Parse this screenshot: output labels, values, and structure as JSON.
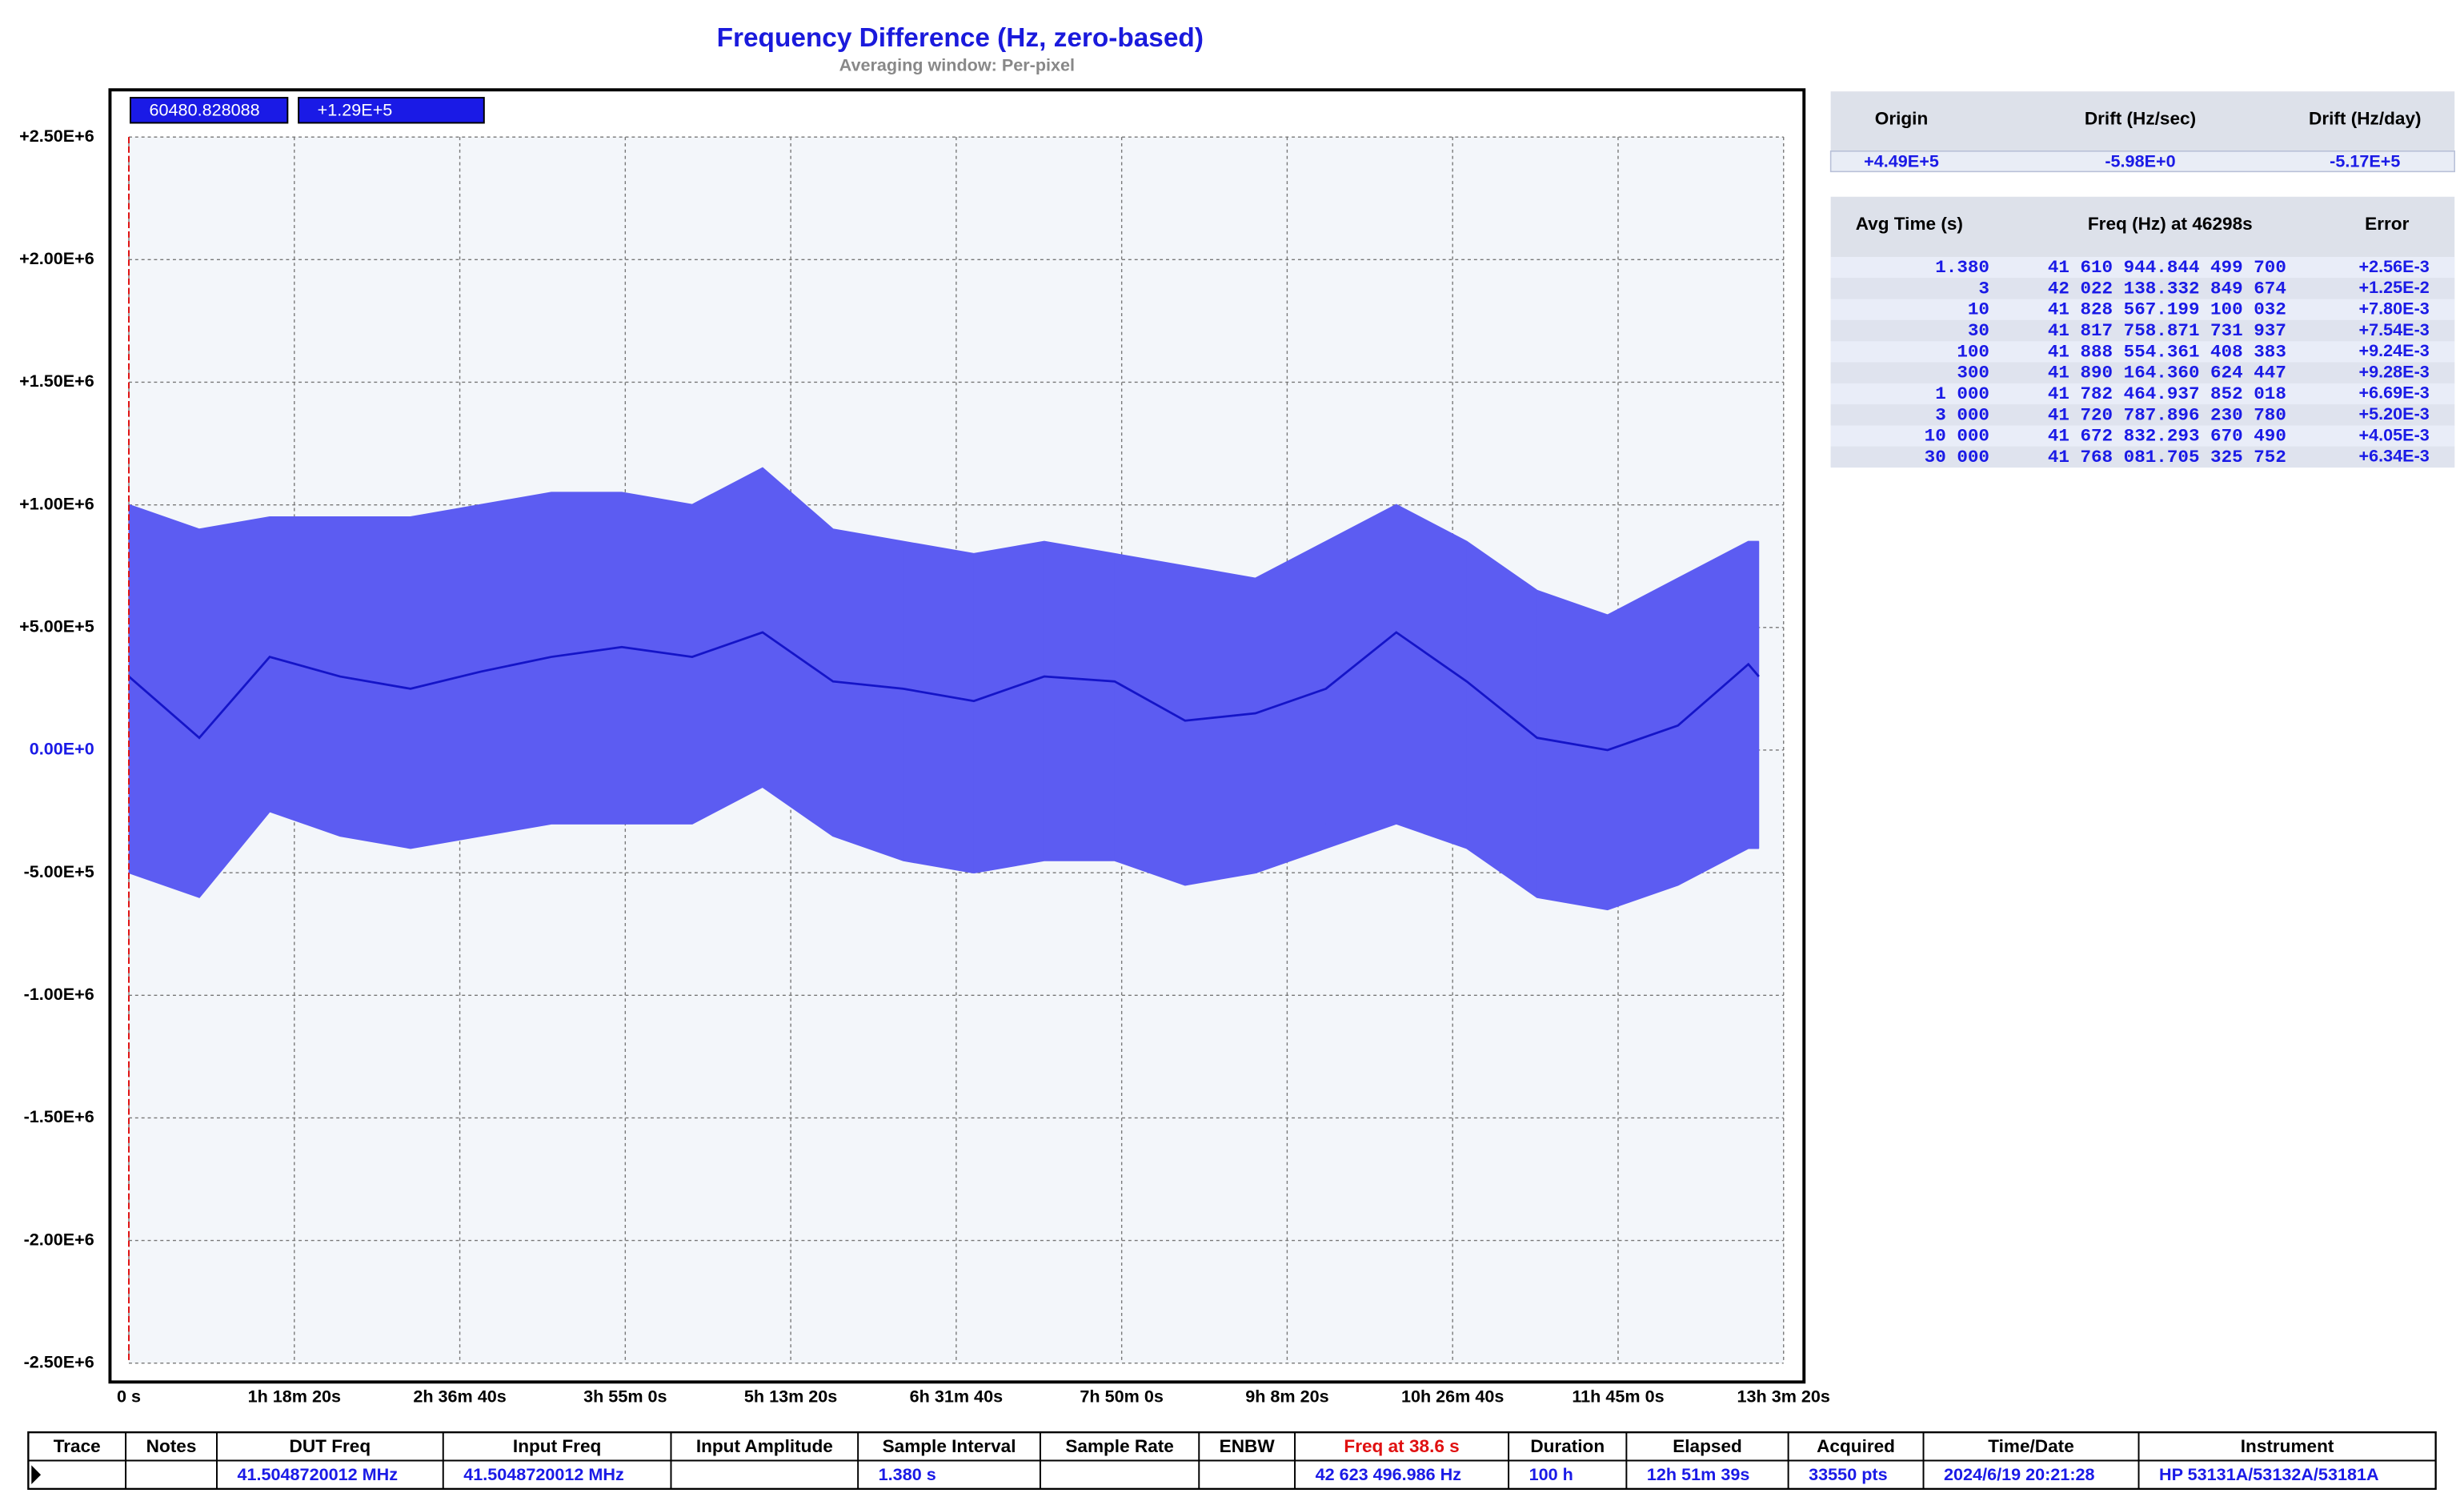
{
  "chart_data": {
    "type": "band-line",
    "title": "Frequency Difference (Hz, zero-based)",
    "subtitle": "Averaging window: Per-pixel",
    "cursor_readout": [
      "60480.828088",
      "+1.29E+5"
    ],
    "x": [
      0,
      2000,
      4000,
      6000,
      8000,
      10000,
      12000,
      14000,
      16000,
      18000,
      20000,
      22000,
      24000,
      26000,
      28000,
      30000,
      32000,
      34000,
      36000,
      38000,
      40000,
      42000,
      44000,
      46000,
      46298
    ],
    "xlim": [
      0,
      47000
    ],
    "xticks": [
      {
        "value": 0,
        "label": "0 s"
      },
      {
        "value": 4700,
        "label": "1h 18m 20s"
      },
      {
        "value": 9400,
        "label": "2h 36m 40s"
      },
      {
        "value": 14100,
        "label": "3h 55m 0s"
      },
      {
        "value": 18800,
        "label": "5h 13m 20s"
      },
      {
        "value": 23500,
        "label": "6h 31m 40s"
      },
      {
        "value": 28200,
        "label": "7h 50m 0s"
      },
      {
        "value": 32900,
        "label": "9h 8m 20s"
      },
      {
        "value": 37600,
        "label": "10h 26m 40s"
      },
      {
        "value": 42300,
        "label": "11h 45m 0s"
      },
      {
        "value": 47000,
        "label": "13h 3m 20s"
      }
    ],
    "ylim": [
      -2500000,
      2500000
    ],
    "yticks": [
      {
        "value": 2500000,
        "label": "+2.50E+6"
      },
      {
        "value": 2000000,
        "label": "+2.00E+6"
      },
      {
        "value": 1500000,
        "label": "+1.50E+6"
      },
      {
        "value": 1000000,
        "label": "+1.00E+6"
      },
      {
        "value": 500000,
        "label": "+5.00E+5"
      },
      {
        "value": 0,
        "label": "0.00E+0"
      },
      {
        "value": -500000,
        "label": "-5.00E+5"
      },
      {
        "value": -1000000,
        "label": "-1.00E+6"
      },
      {
        "value": -1500000,
        "label": "-1.50E+6"
      },
      {
        "value": -2000000,
        "label": "-2.00E+6"
      },
      {
        "value": -2500000,
        "label": "-2.50E+6"
      }
    ],
    "grid": true,
    "series": [
      {
        "color": "#1414c8",
        "values": [
          300000,
          50000,
          380000,
          300000,
          250000,
          320000,
          380000,
          420000,
          380000,
          480000,
          280000,
          250000,
          200000,
          300000,
          280000,
          120000,
          150000,
          250000,
          480000,
          280000,
          50000,
          0,
          100000,
          350000,
          300000
        ]
      },
      {
        "color": "#5c5cf2",
        "values": [
          1000000,
          900000,
          950000,
          950000,
          950000,
          1000000,
          1050000,
          1050000,
          1000000,
          1150000,
          900000,
          850000,
          800000,
          850000,
          800000,
          750000,
          700000,
          850000,
          1000000,
          850000,
          650000,
          550000,
          700000,
          850000,
          850000
        ]
      },
      {
        "color": "#5c5cf2",
        "values": [
          -500000,
          -600000,
          -250000,
          -350000,
          -400000,
          -350000,
          -300000,
          -300000,
          -300000,
          -150000,
          -350000,
          -450000,
          -500000,
          -450000,
          -450000,
          -550000,
          -500000,
          -400000,
          -300000,
          -400000,
          -600000,
          -650000,
          -550000,
          -400000,
          -400000
        ]
      }
    ]
  },
  "drift_table": {
    "headers": [
      "Origin",
      "Drift (Hz/sec)",
      "Drift (Hz/day)"
    ],
    "row": [
      "+4.49E+5",
      "-5.98E+0",
      "-5.17E+5"
    ]
  },
  "avg_table": {
    "headers": [
      "Avg Time (s)",
      "Freq (Hz) at 46298s",
      "Error"
    ],
    "rows": [
      [
        "1.380",
        "41 610 944.844 499 700",
        "+2.56E-3"
      ],
      [
        "3",
        "42 022 138.332 849 674",
        "+1.25E-2"
      ],
      [
        "10",
        "41 828 567.199 100 032",
        "+7.80E-3"
      ],
      [
        "30",
        "41 817 758.871 731 937",
        "+7.54E-3"
      ],
      [
        "100",
        "41 888 554.361 408 383",
        "+9.24E-3"
      ],
      [
        "300",
        "41 890 164.360 624 447",
        "+9.28E-3"
      ],
      [
        "1 000",
        "41 782 464.937 852 018",
        "+6.69E-3"
      ],
      [
        "3 000",
        "41 720 787.896 230 780",
        "+5.20E-3"
      ],
      [
        "10 000",
        "41 672 832.293 670 490",
        "+4.05E-3"
      ],
      [
        "30 000",
        "41 768 081.705 325 752",
        "+6.34E-3"
      ]
    ]
  },
  "status_table": {
    "headers": [
      "Trace",
      "Notes",
      "DUT Freq",
      "Input Freq",
      "Input Amplitude",
      "Sample Interval",
      "Sample Rate",
      "ENBW",
      "Freq at 38.6 s",
      "Duration",
      "Elapsed",
      "Acquired",
      "Time/Date",
      "Instrument"
    ],
    "row": [
      null,
      null,
      "41.5048720012 MHz",
      "41.5048720012 MHz",
      null,
      "1.380 s",
      null,
      null,
      "42 623 496.986 Hz",
      "100 h",
      "12h 51m 39s",
      "33550 pts",
      "2024/6/19 20:21:28",
      "HP 53131A/53132A/53181A"
    ]
  }
}
